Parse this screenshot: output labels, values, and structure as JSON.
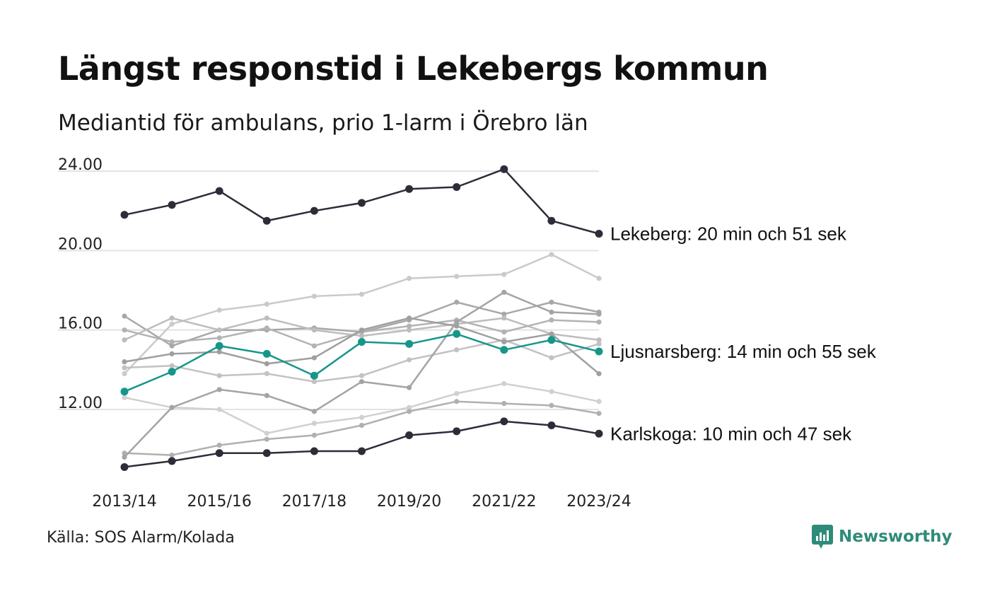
{
  "title": "Längst responstid i Lekebergs kommun",
  "subtitle": "Mediantid för ambulans, prio 1-larm i Örebro län",
  "source": "Källa: SOS Alarm/Kolada",
  "brand": "Newsworthy",
  "colors": {
    "highlight_dark": "#2d2d3a",
    "highlight_teal": "#16968a",
    "background_lines": [
      "#cacaca",
      "#a8a8a8",
      "#bdbdbd",
      "#b3b3b3",
      "#c2c2c2",
      "#9f9f9f",
      "#d0d0d0",
      "#b0b0b0",
      "#a4a4a4"
    ],
    "grid": "#e3e3e3",
    "brand": "#2e8b79"
  },
  "chart_data": {
    "type": "line",
    "categories": [
      "2013/14",
      "2014/15",
      "2015/16",
      "2016/17",
      "2017/18",
      "2018/19",
      "2019/20",
      "2020/21",
      "2021/22",
      "2022/23",
      "2023/24"
    ],
    "x_tick_labels": [
      "2013/14",
      "2015/16",
      "2017/18",
      "2019/20",
      "2021/22",
      "2023/24"
    ],
    "y_ticks": [
      12,
      16,
      20,
      24
    ],
    "y_tick_labels": [
      "12.00",
      "16.00",
      "20.00",
      "24.00"
    ],
    "ylim": [
      9.0,
      24.5
    ],
    "grid": "horizontal",
    "series": [
      {
        "values": [
          13.8,
          16.3,
          17.0,
          17.3,
          17.7,
          17.8,
          18.6,
          18.7,
          18.8,
          19.8,
          18.6
        ],
        "style": "background"
      },
      {
        "values": [
          16.7,
          15.2,
          16.0,
          16.0,
          16.1,
          15.9,
          16.5,
          17.4,
          16.8,
          17.4,
          16.9
        ],
        "style": "background"
      },
      {
        "values": [
          15.5,
          16.6,
          16.0,
          16.6,
          16.0,
          15.7,
          16.0,
          16.3,
          16.6,
          15.8,
          15.5
        ],
        "style": "background"
      },
      {
        "values": [
          16.0,
          15.4,
          15.6,
          16.1,
          15.2,
          15.9,
          16.2,
          16.5,
          15.9,
          16.5,
          16.4
        ],
        "style": "background"
      },
      {
        "values": [
          14.1,
          14.2,
          13.7,
          13.8,
          13.4,
          13.7,
          14.5,
          15.0,
          15.5,
          14.6,
          15.3
        ],
        "style": "background"
      },
      {
        "values": [
          14.4,
          14.8,
          14.9,
          14.3,
          14.6,
          16.0,
          16.6,
          16.2,
          15.4,
          15.8,
          13.8
        ],
        "style": "background"
      },
      {
        "values": [
          12.6,
          12.1,
          12.0,
          10.8,
          11.3,
          11.6,
          12.1,
          12.8,
          13.3,
          12.9,
          12.4
        ],
        "style": "background"
      },
      {
        "values": [
          9.8,
          9.7,
          10.2,
          10.5,
          10.7,
          11.2,
          11.9,
          12.4,
          12.3,
          12.2,
          11.8
        ],
        "style": "background"
      },
      {
        "values": [
          9.6,
          12.1,
          13.0,
          12.7,
          11.9,
          13.4,
          13.1,
          16.4,
          17.9,
          16.9,
          16.8
        ],
        "style": "background"
      },
      {
        "name": "Lekeberg: 20 min och 51 sek",
        "values": [
          21.8,
          22.3,
          23.0,
          21.5,
          22.0,
          22.4,
          23.1,
          23.2,
          24.1,
          21.5,
          20.85
        ],
        "style": "dark"
      },
      {
        "name": "Ljusnarsberg: 14 min och 55 sek",
        "values": [
          12.9,
          13.9,
          15.2,
          14.8,
          13.7,
          15.4,
          15.3,
          15.8,
          15.0,
          15.5,
          14.92
        ],
        "style": "teal"
      },
      {
        "name": "Karlskoga: 10 min och 47 sek",
        "values": [
          9.1,
          9.4,
          9.8,
          9.8,
          9.9,
          9.9,
          10.7,
          10.9,
          11.4,
          11.2,
          10.78
        ],
        "style": "dark"
      }
    ]
  }
}
